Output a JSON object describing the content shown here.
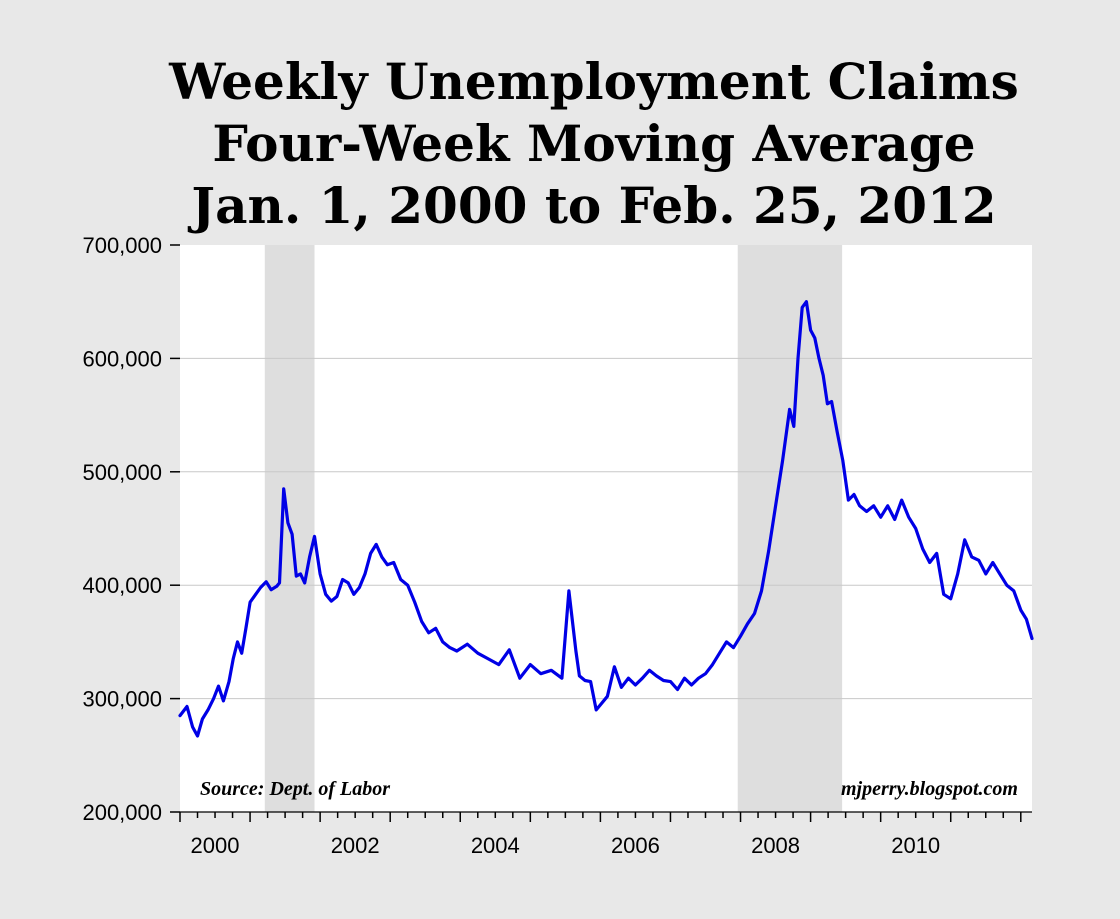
{
  "chart_data": {
    "type": "line",
    "title": [
      "Weekly Unemployment Claims",
      "Four-Week Moving Average",
      "Jan. 1, 2000 to Feb. 25, 2012"
    ],
    "xlabel": "",
    "ylabel": "",
    "xlim": [
      2000.0,
      2012.16
    ],
    "ylim": [
      200000,
      700000
    ],
    "x_ticks": [
      "2000",
      "2002",
      "2004",
      "2006",
      "2008",
      "2010"
    ],
    "x_tick_values": [
      2000,
      2002,
      2004,
      2006,
      2008,
      2010
    ],
    "y_ticks": [
      "700,000",
      "600,000",
      "500,000",
      "400,000",
      "300,000",
      "200,000"
    ],
    "y_tick_values": [
      700000,
      600000,
      500000,
      400000,
      300000,
      200000
    ],
    "grid": "horizontal",
    "line_color": "#0000e6",
    "recession_color": "#dedede",
    "recessions": [
      {
        "start": 2001.21,
        "end": 2001.92
      },
      {
        "start": 2007.96,
        "end": 2009.45
      }
    ],
    "annotations": {
      "source": "Source: Dept. of Labor",
      "credit": "mjperry.blogspot.com"
    },
    "series": [
      {
        "x": [
          2000.0,
          2000.1,
          2000.18,
          2000.25,
          2000.32,
          2000.4,
          2000.48,
          2000.55,
          2000.62,
          2000.7,
          2000.76,
          2000.82,
          2000.88,
          2000.94,
          2001.0,
          2001.08,
          2001.15,
          2001.23,
          2001.3,
          2001.38,
          2001.42,
          2001.48,
          2001.54,
          2001.6,
          2001.66,
          2001.72,
          2001.78,
          2001.85,
          2001.92,
          2002.0,
          2002.08,
          2002.16,
          2002.24,
          2002.32,
          2002.4,
          2002.48,
          2002.56,
          2002.64,
          2002.72,
          2002.8,
          2002.88,
          2002.96,
          2003.05,
          2003.15,
          2003.25,
          2003.35,
          2003.45,
          2003.55,
          2003.65,
          2003.75,
          2003.85,
          2003.95,
          2004.1,
          2004.25,
          2004.4,
          2004.55,
          2004.7,
          2004.85,
          2005.0,
          2005.15,
          2005.3,
          2005.45,
          2005.55,
          2005.65,
          2005.7,
          2005.78,
          2005.86,
          2005.94,
          2006.02,
          2006.1,
          2006.2,
          2006.3,
          2006.4,
          2006.5,
          2006.6,
          2006.7,
          2006.8,
          2006.9,
          2007.0,
          2007.1,
          2007.2,
          2007.3,
          2007.4,
          2007.5,
          2007.6,
          2007.7,
          2007.8,
          2007.9,
          2008.0,
          2008.1,
          2008.2,
          2008.3,
          2008.4,
          2008.5,
          2008.6,
          2008.7,
          2008.76,
          2008.82,
          2008.88,
          2008.94,
          2009.0,
          2009.06,
          2009.12,
          2009.18,
          2009.24,
          2009.3,
          2009.38,
          2009.46,
          2009.54,
          2009.62,
          2009.7,
          2009.8,
          2009.9,
          2010.0,
          2010.1,
          2010.2,
          2010.3,
          2010.4,
          2010.5,
          2010.6,
          2010.7,
          2010.8,
          2010.9,
          2011.0,
          2011.1,
          2011.2,
          2011.3,
          2011.4,
          2011.5,
          2011.6,
          2011.7,
          2011.8,
          2011.9,
          2012.0,
          2012.08,
          2012.16
        ],
        "values": [
          285000,
          293000,
          275000,
          267000,
          282000,
          290000,
          300000,
          311000,
          298000,
          315000,
          335000,
          350000,
          340000,
          362000,
          385000,
          392000,
          398000,
          403000,
          396000,
          399000,
          402000,
          485000,
          455000,
          445000,
          408000,
          410000,
          402000,
          425000,
          443000,
          410000,
          392000,
          386000,
          390000,
          405000,
          402000,
          392000,
          398000,
          410000,
          428000,
          436000,
          425000,
          418000,
          420000,
          405000,
          400000,
          385000,
          368000,
          358000,
          362000,
          350000,
          345000,
          342000,
          348000,
          340000,
          335000,
          330000,
          343000,
          318000,
          330000,
          322000,
          325000,
          318000,
          395000,
          342000,
          320000,
          316000,
          315000,
          290000,
          296000,
          302000,
          328000,
          310000,
          318000,
          312000,
          318000,
          325000,
          320000,
          316000,
          315000,
          308000,
          318000,
          312000,
          318000,
          322000,
          330000,
          340000,
          350000,
          345000,
          355000,
          366000,
          375000,
          395000,
          430000,
          470000,
          510000,
          555000,
          540000,
          600000,
          645000,
          650000,
          625000,
          618000,
          600000,
          585000,
          560000,
          562000,
          535000,
          510000,
          475000,
          480000,
          470000,
          465000,
          470000,
          460000,
          470000,
          458000,
          475000,
          460000,
          450000,
          432000,
          420000,
          428000,
          392000,
          388000,
          410000,
          440000,
          425000,
          422000,
          410000,
          420000,
          410000,
          400000,
          395000,
          378000,
          370000,
          353000
        ]
      }
    ]
  }
}
